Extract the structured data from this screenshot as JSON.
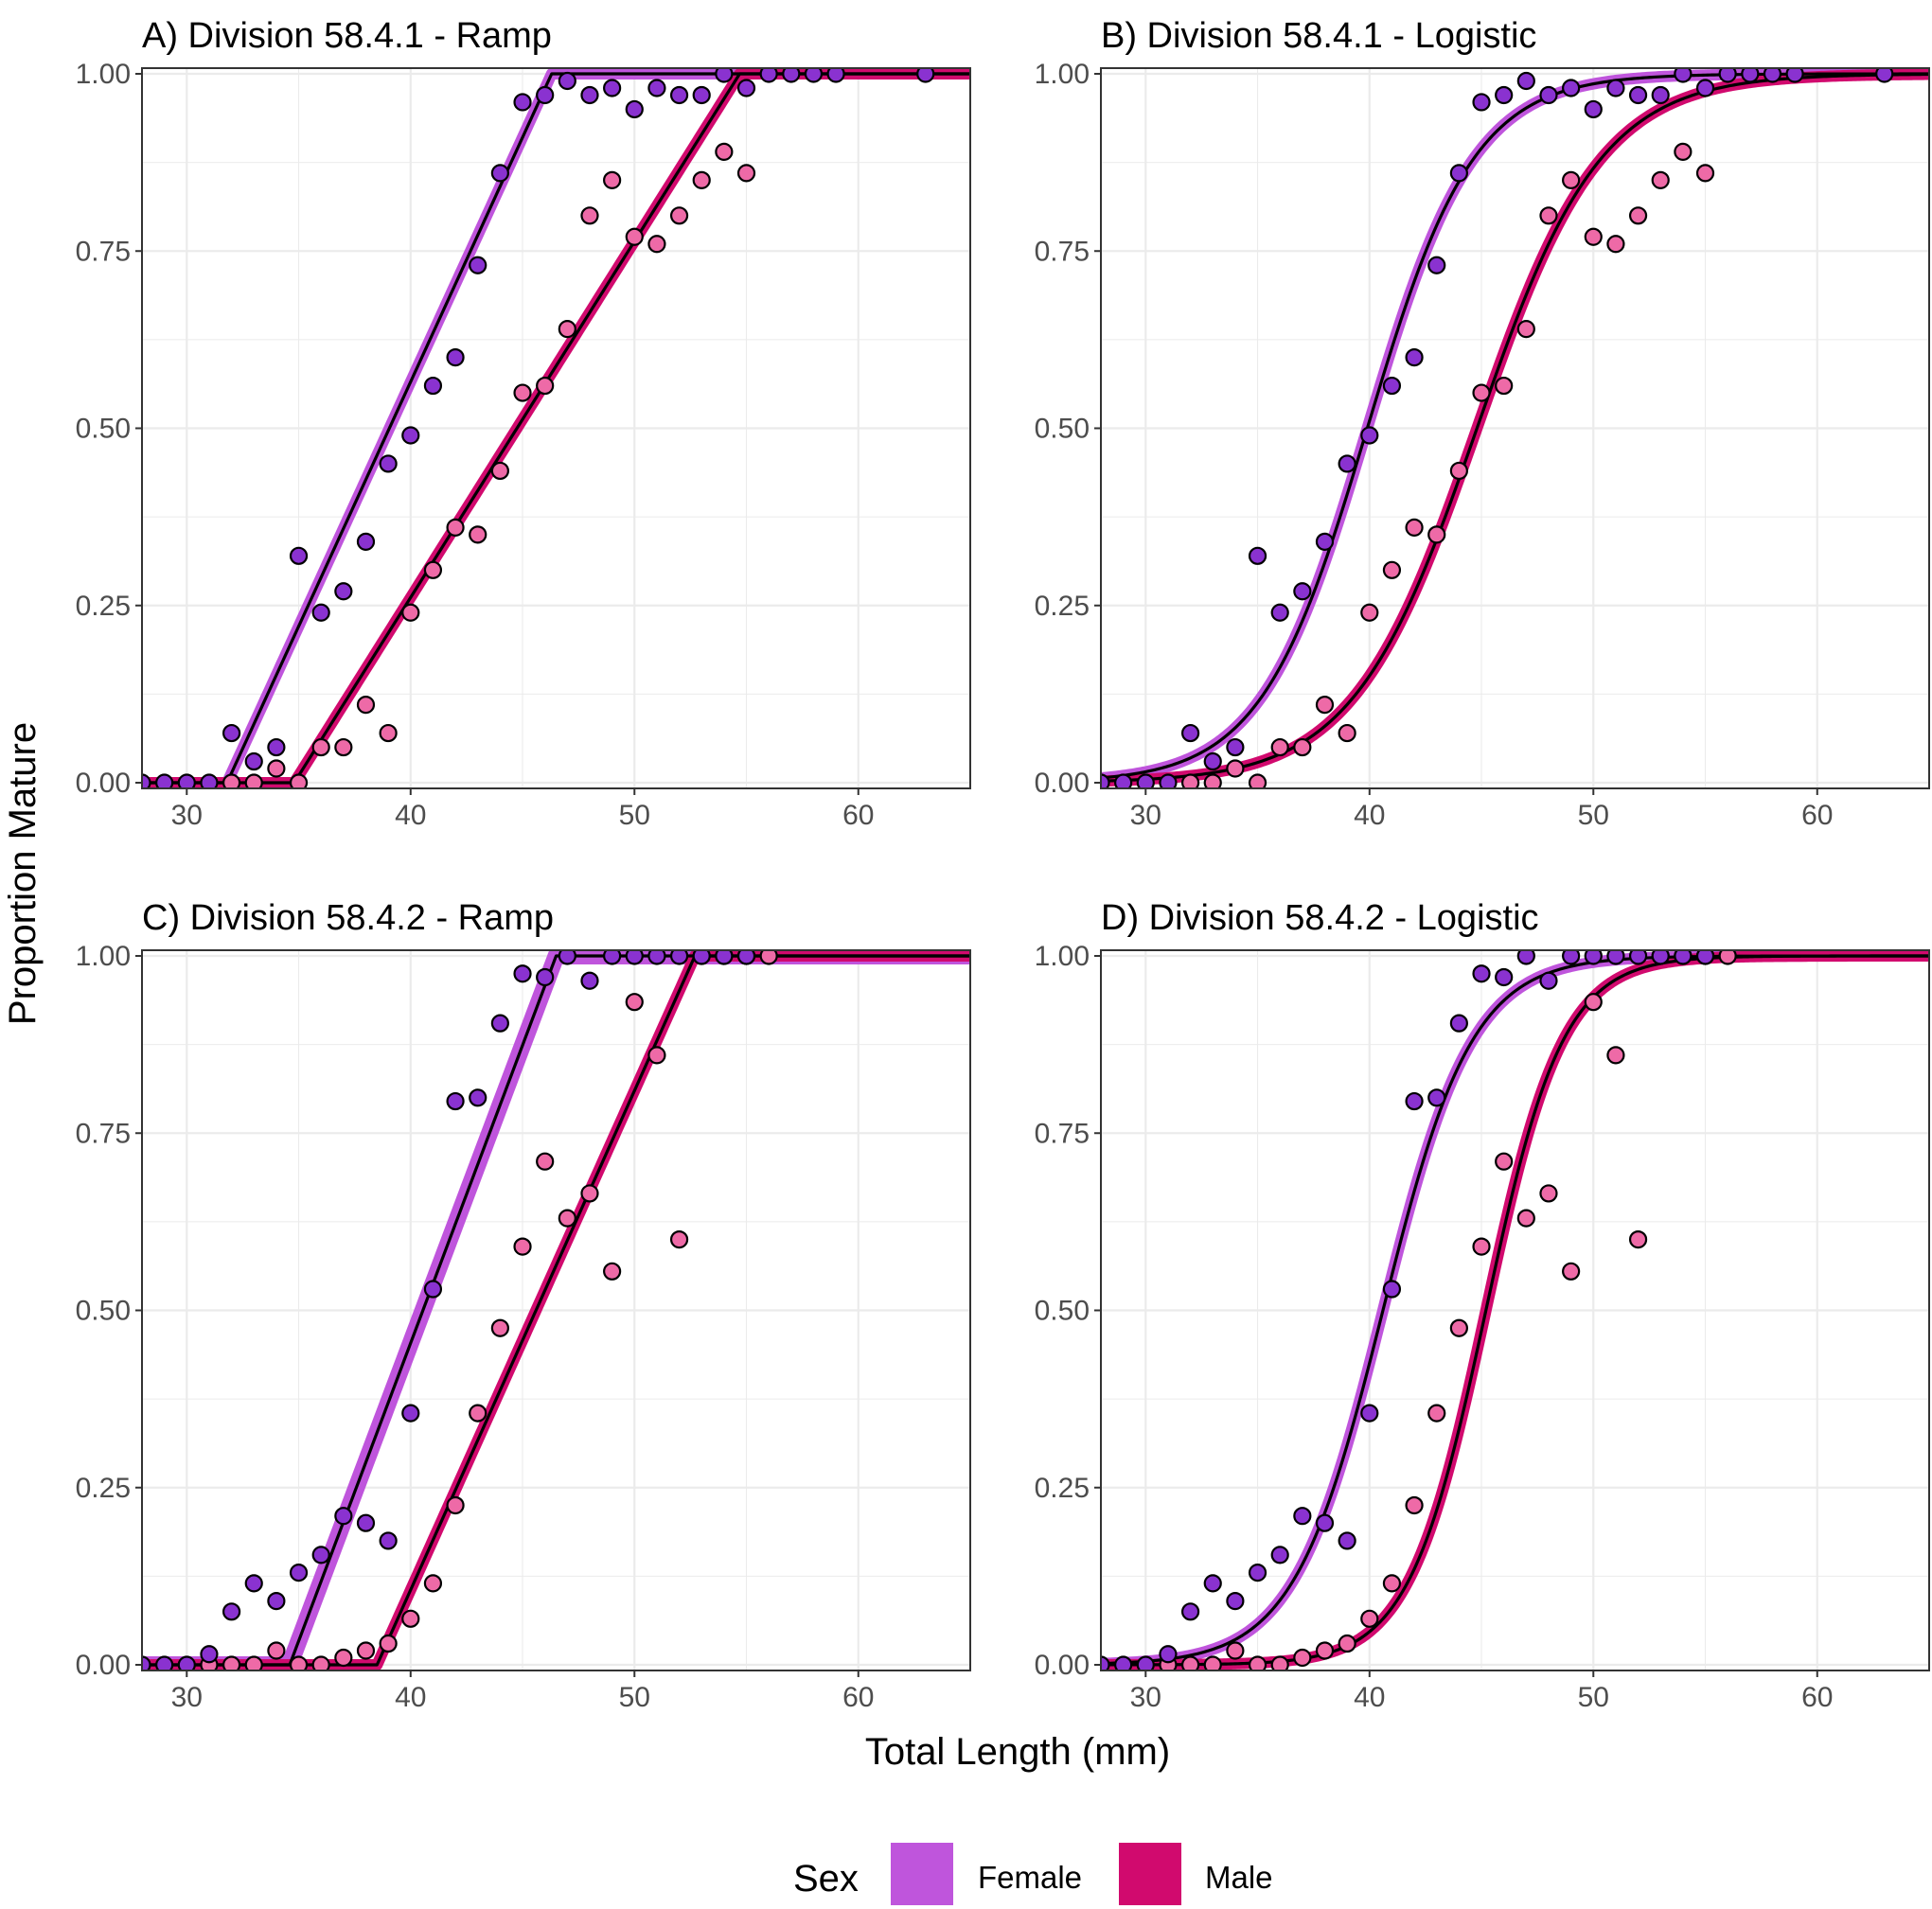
{
  "figure": {
    "xlabel": "Total Length (mm)",
    "ylabel": "Proportion Mature",
    "legend": {
      "title": "Sex",
      "position": "bottom",
      "entries": [
        {
          "label": "Female",
          "color": "#bf55dc"
        },
        {
          "label": "Male",
          "color": "#d10a6e"
        }
      ]
    }
  },
  "colors": {
    "female_band": "#bf55dc",
    "male_band": "#d10a6e",
    "female_point": "#8a32d0",
    "male_point": "#ee6aa7",
    "fit_line": "#000000",
    "grid": "#ebebeb",
    "panel_border": "#333333"
  },
  "chart_data": [
    {
      "panel": "A",
      "type": "scatter",
      "title": "A) Division 58.4.1 - Ramp",
      "model": "ramp",
      "xlim": [
        28,
        65
      ],
      "ylim": [
        0,
        1
      ],
      "xticks": [
        30,
        40,
        50,
        60
      ],
      "yticks": [
        "0.00",
        "0.25",
        "0.50",
        "0.75",
        "1.00"
      ],
      "grid": true,
      "series": [
        {
          "name": "Female",
          "fit": {
            "start": 31.8,
            "end": 46.3
          },
          "points": [
            [
              28,
              0
            ],
            [
              29,
              0
            ],
            [
              30,
              0
            ],
            [
              31,
              0
            ],
            [
              32,
              0.07
            ],
            [
              33,
              0.03
            ],
            [
              34,
              0.05
            ],
            [
              35,
              0.32
            ],
            [
              36,
              0.24
            ],
            [
              37,
              0.27
            ],
            [
              38,
              0.34
            ],
            [
              39,
              0.45
            ],
            [
              40,
              0.49
            ],
            [
              41,
              0.56
            ],
            [
              42,
              0.6
            ],
            [
              43,
              0.73
            ],
            [
              44,
              0.86
            ],
            [
              45,
              0.96
            ],
            [
              46,
              0.97
            ],
            [
              47,
              0.99
            ],
            [
              48,
              0.97
            ],
            [
              49,
              0.98
            ],
            [
              50,
              0.95
            ],
            [
              51,
              0.98
            ],
            [
              52,
              0.97
            ],
            [
              53,
              0.97
            ],
            [
              54,
              1
            ],
            [
              55,
              0.98
            ],
            [
              56,
              1
            ],
            [
              57,
              1
            ],
            [
              58,
              1
            ],
            [
              59,
              1
            ],
            [
              63,
              1
            ]
          ]
        },
        {
          "name": "Male",
          "fit": {
            "start": 34.8,
            "end": 54.7
          },
          "points": [
            [
              32,
              0
            ],
            [
              33,
              0
            ],
            [
              34,
              0.02
            ],
            [
              35,
              0
            ],
            [
              36,
              0.05
            ],
            [
              37,
              0.05
            ],
            [
              38,
              0.11
            ],
            [
              39,
              0.07
            ],
            [
              40,
              0.24
            ],
            [
              41,
              0.3
            ],
            [
              42,
              0.36
            ],
            [
              43,
              0.35
            ],
            [
              44,
              0.44
            ],
            [
              45,
              0.55
            ],
            [
              46,
              0.56
            ],
            [
              47,
              0.64
            ],
            [
              48,
              0.8
            ],
            [
              49,
              0.85
            ],
            [
              50,
              0.77
            ],
            [
              51,
              0.76
            ],
            [
              52,
              0.8
            ],
            [
              53,
              0.85
            ],
            [
              54,
              0.89
            ],
            [
              55,
              0.86
            ]
          ]
        }
      ]
    },
    {
      "panel": "B",
      "type": "scatter",
      "title": "B) Division 58.4.1 - Logistic",
      "model": "logistic",
      "xlim": [
        28,
        65
      ],
      "ylim": [
        0,
        1
      ],
      "xticks": [
        30,
        40,
        50,
        60
      ],
      "yticks": [
        "0.00",
        "0.25",
        "0.50",
        "0.75",
        "1.00"
      ],
      "grid": true,
      "series": [
        {
          "name": "Female",
          "fit": {
            "l50": 39.9,
            "k": 0.42
          },
          "points": [
            [
              28,
              0
            ],
            [
              29,
              0
            ],
            [
              30,
              0
            ],
            [
              31,
              0
            ],
            [
              32,
              0.07
            ],
            [
              33,
              0.03
            ],
            [
              34,
              0.05
            ],
            [
              35,
              0.32
            ],
            [
              36,
              0.24
            ],
            [
              37,
              0.27
            ],
            [
              38,
              0.34
            ],
            [
              39,
              0.45
            ],
            [
              40,
              0.49
            ],
            [
              41,
              0.56
            ],
            [
              42,
              0.6
            ],
            [
              43,
              0.73
            ],
            [
              44,
              0.86
            ],
            [
              45,
              0.96
            ],
            [
              46,
              0.97
            ],
            [
              47,
              0.99
            ],
            [
              48,
              0.97
            ],
            [
              49,
              0.98
            ],
            [
              50,
              0.95
            ],
            [
              51,
              0.98
            ],
            [
              52,
              0.97
            ],
            [
              53,
              0.97
            ],
            [
              54,
              1
            ],
            [
              55,
              0.98
            ],
            [
              56,
              1
            ],
            [
              57,
              1
            ],
            [
              58,
              1
            ],
            [
              59,
              1
            ],
            [
              63,
              1
            ]
          ]
        },
        {
          "name": "Male",
          "fit": {
            "l50": 44.8,
            "k": 0.36
          },
          "points": [
            [
              32,
              0
            ],
            [
              33,
              0
            ],
            [
              34,
              0.02
            ],
            [
              35,
              0
            ],
            [
              36,
              0.05
            ],
            [
              37,
              0.05
            ],
            [
              38,
              0.11
            ],
            [
              39,
              0.07
            ],
            [
              40,
              0.24
            ],
            [
              41,
              0.3
            ],
            [
              42,
              0.36
            ],
            [
              43,
              0.35
            ],
            [
              44,
              0.44
            ],
            [
              45,
              0.55
            ],
            [
              46,
              0.56
            ],
            [
              47,
              0.64
            ],
            [
              48,
              0.8
            ],
            [
              49,
              0.85
            ],
            [
              50,
              0.77
            ],
            [
              51,
              0.76
            ],
            [
              52,
              0.8
            ],
            [
              53,
              0.85
            ],
            [
              54,
              0.89
            ],
            [
              55,
              0.86
            ]
          ]
        }
      ]
    },
    {
      "panel": "C",
      "type": "scatter",
      "title": "C) Division 58.4.2 - Ramp",
      "model": "ramp",
      "xlim": [
        28,
        65
      ],
      "ylim": [
        0,
        1
      ],
      "xticks": [
        30,
        40,
        50,
        60
      ],
      "yticks": [
        "0.00",
        "0.25",
        "0.50",
        "0.75",
        "1.00"
      ],
      "grid": true,
      "series": [
        {
          "name": "Female",
          "fit": {
            "start": 34.6,
            "end": 46.5
          },
          "points": [
            [
              28,
              0
            ],
            [
              29,
              0
            ],
            [
              30,
              0
            ],
            [
              31,
              0.015
            ],
            [
              32,
              0.075
            ],
            [
              33,
              0.115
            ],
            [
              34,
              0.09
            ],
            [
              35,
              0.13
            ],
            [
              36,
              0.155
            ],
            [
              37,
              0.21
            ],
            [
              38,
              0.2
            ],
            [
              39,
              0.175
            ],
            [
              40,
              0.355
            ],
            [
              41,
              0.53
            ],
            [
              42,
              0.795
            ],
            [
              43,
              0.8
            ],
            [
              44,
              0.905
            ],
            [
              45,
              0.975
            ],
            [
              46,
              0.97
            ],
            [
              47,
              1
            ],
            [
              48,
              0.965
            ],
            [
              49,
              1
            ],
            [
              50,
              1
            ],
            [
              51,
              1
            ],
            [
              52,
              1
            ],
            [
              53,
              1
            ],
            [
              54,
              1
            ],
            [
              55,
              1
            ]
          ]
        },
        {
          "name": "Male",
          "fit": {
            "start": 38.5,
            "end": 52.7
          },
          "points": [
            [
              31,
              0
            ],
            [
              32,
              0
            ],
            [
              33,
              0
            ],
            [
              34,
              0.02
            ],
            [
              35,
              0
            ],
            [
              36,
              0
            ],
            [
              37,
              0.01
            ],
            [
              38,
              0.02
            ],
            [
              39,
              0.03
            ],
            [
              40,
              0.065
            ],
            [
              41,
              0.115
            ],
            [
              42,
              0.225
            ],
            [
              43,
              0.355
            ],
            [
              44,
              0.475
            ],
            [
              45,
              0.59
            ],
            [
              46,
              0.71
            ],
            [
              47,
              0.63
            ],
            [
              48,
              0.665
            ],
            [
              49,
              0.555
            ],
            [
              50,
              0.935
            ],
            [
              51,
              0.86
            ],
            [
              52,
              0.6
            ],
            [
              53,
              1
            ],
            [
              54,
              1
            ],
            [
              55,
              1
            ],
            [
              56,
              1
            ]
          ]
        }
      ]
    },
    {
      "panel": "D",
      "type": "scatter",
      "title": "D) Division 58.4.2 - Logistic",
      "model": "logistic",
      "xlim": [
        28,
        65
      ],
      "ylim": [
        0,
        1
      ],
      "xticks": [
        30,
        40,
        50,
        60
      ],
      "yticks": [
        "0.00",
        "0.25",
        "0.50",
        "0.75",
        "1.00"
      ],
      "grid": true,
      "series": [
        {
          "name": "Female",
          "fit": {
            "l50": 40.6,
            "k": 0.5
          },
          "points": [
            [
              28,
              0
            ],
            [
              29,
              0
            ],
            [
              30,
              0
            ],
            [
              31,
              0.015
            ],
            [
              32,
              0.075
            ],
            [
              33,
              0.115
            ],
            [
              34,
              0.09
            ],
            [
              35,
              0.13
            ],
            [
              36,
              0.155
            ],
            [
              37,
              0.21
            ],
            [
              38,
              0.2
            ],
            [
              39,
              0.175
            ],
            [
              40,
              0.355
            ],
            [
              41,
              0.53
            ],
            [
              42,
              0.795
            ],
            [
              43,
              0.8
            ],
            [
              44,
              0.905
            ],
            [
              45,
              0.975
            ],
            [
              46,
              0.97
            ],
            [
              47,
              1
            ],
            [
              48,
              0.965
            ],
            [
              49,
              1
            ],
            [
              50,
              1
            ],
            [
              51,
              1
            ],
            [
              52,
              1
            ],
            [
              53,
              1
            ],
            [
              54,
              1
            ],
            [
              55,
              1
            ]
          ]
        },
        {
          "name": "Male",
          "fit": {
            "l50": 45.2,
            "k": 0.58
          },
          "points": [
            [
              31,
              0
            ],
            [
              32,
              0
            ],
            [
              33,
              0
            ],
            [
              34,
              0.02
            ],
            [
              35,
              0
            ],
            [
              36,
              0
            ],
            [
              37,
              0.01
            ],
            [
              38,
              0.02
            ],
            [
              39,
              0.03
            ],
            [
              40,
              0.065
            ],
            [
              41,
              0.115
            ],
            [
              42,
              0.225
            ],
            [
              43,
              0.355
            ],
            [
              44,
              0.475
            ],
            [
              45,
              0.59
            ],
            [
              46,
              0.71
            ],
            [
              47,
              0.63
            ],
            [
              48,
              0.665
            ],
            [
              49,
              0.555
            ],
            [
              50,
              0.935
            ],
            [
              51,
              0.86
            ],
            [
              52,
              0.6
            ],
            [
              53,
              1
            ],
            [
              54,
              1
            ],
            [
              55,
              1
            ],
            [
              56,
              1
            ]
          ]
        }
      ]
    }
  ]
}
